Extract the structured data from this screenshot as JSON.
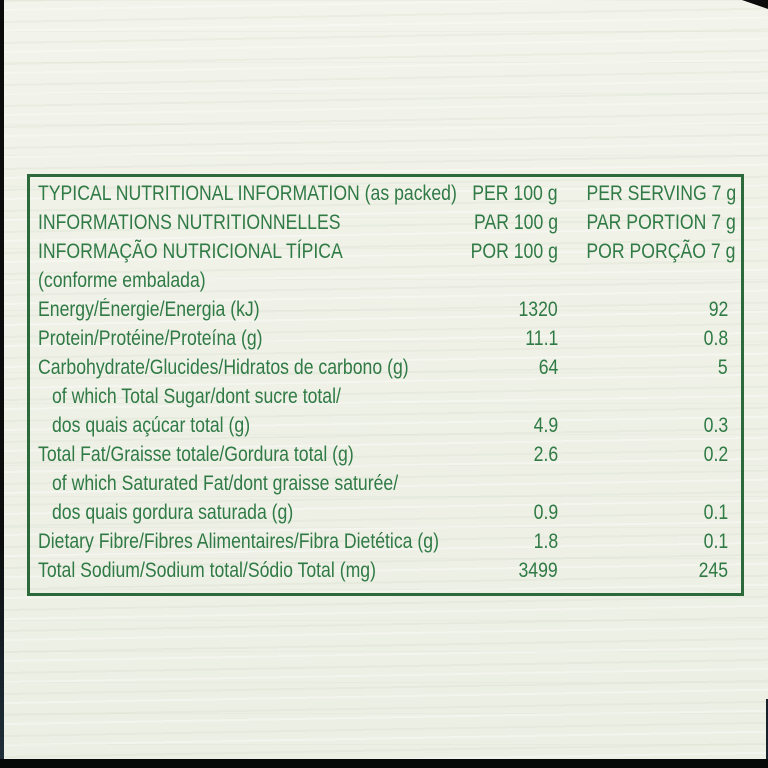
{
  "colors": {
    "text_green": "#2f7a45",
    "border_green": "#2c6a3b",
    "background": "#eff1e7",
    "photo_edge": "#0b0b0b"
  },
  "table": {
    "header_rows": [
      {
        "title": "TYPICAL NUTRITIONAL INFORMATION (as packed)",
        "per100": "PER 100 g",
        "serving": "PER SERVING 7 g"
      },
      {
        "title": "INFORMATIONS NUTRITIONNELLES",
        "per100": "PAR 100 g",
        "serving": "PAR PORTION 7 g"
      },
      {
        "title": "INFORMAÇÃO NUTRICIONAL TÍPICA",
        "per100": "POR 100 g",
        "serving": "POR PORÇÃO 7 g"
      },
      {
        "title": "(conforme embalada)",
        "per100": "",
        "serving": ""
      }
    ],
    "rows": [
      {
        "label": "Energy/Énergie/Energia (kJ)",
        "per100": "1320",
        "serving": "92"
      },
      {
        "label": "Protein/Protéine/Proteína (g)",
        "per100": "11.1",
        "serving": "0.8"
      },
      {
        "label": "Carbohydrate/Glucides/Hidratos de carbono (g)",
        "per100": "64",
        "serving": "5"
      },
      {
        "label": "of which Total Sugar/dont sucre total/",
        "per100": "",
        "serving": ""
      },
      {
        "label": "dos quais açúcar total (g)",
        "per100": "4.9",
        "serving": "0.3"
      },
      {
        "label": "Total Fat/Graisse totale/Gordura total (g)",
        "per100": "2.6",
        "serving": "0.2"
      },
      {
        "label": "of which Saturated Fat/dont graisse saturée/",
        "per100": "",
        "serving": ""
      },
      {
        "label": "dos quais gordura saturada (g)",
        "per100": "0.9",
        "serving": "0.1"
      },
      {
        "label": "Dietary Fibre/Fibres Alimentaires/Fibra Dietética (g)",
        "per100": "1.8",
        "serving": "0.1"
      },
      {
        "label": "Total Sodium/Sodium total/Sódio Total (mg)",
        "per100": "3499",
        "serving": "245"
      }
    ]
  }
}
